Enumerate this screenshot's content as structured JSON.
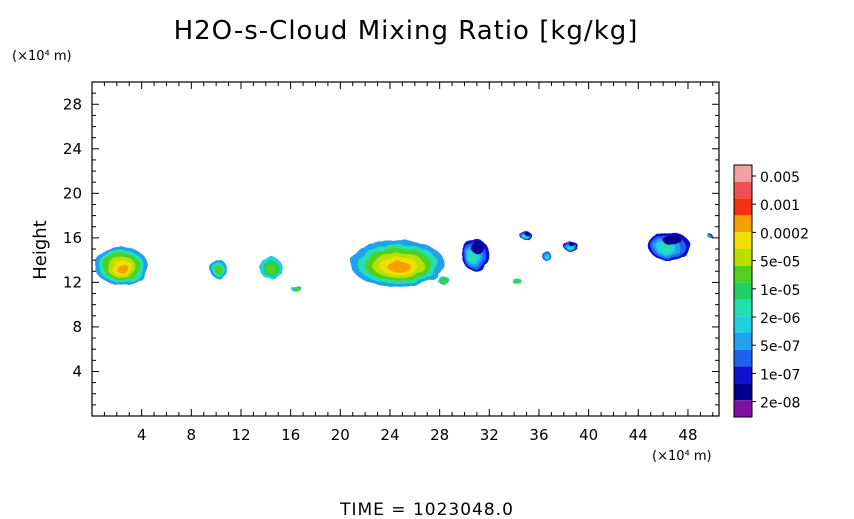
{
  "chart_data": {
    "type": "heatmap",
    "title": "H2O-s-Cloud Mixing Ratio [kg/kg]",
    "ylabel": "Height",
    "x_unit": "(×10⁴ m)",
    "y_unit": "(×10⁴ m)",
    "xlim": [
      0,
      50.5
    ],
    "ylim": [
      0,
      30
    ],
    "x_ticks": [
      4,
      8,
      12,
      16,
      20,
      24,
      28,
      32,
      36,
      40,
      44,
      48
    ],
    "y_ticks": [
      4,
      8,
      12,
      16,
      20,
      24,
      28
    ],
    "legend": {
      "position": "right",
      "labels": [
        "0.005",
        "0.001",
        "0.0002",
        "5e-05",
        "1e-05",
        "2e-06",
        "5e-07",
        "1e-07",
        "2e-08"
      ],
      "colors": [
        "#f2a2a2",
        "#f05050",
        "#f53010",
        "#f5a000",
        "#f0e000",
        "#b8e000",
        "#50d020",
        "#20d060",
        "#20e0b0",
        "#20d0e0",
        "#20a0f0",
        "#2060f0",
        "#1010d0",
        "#000090",
        "#8010a0"
      ]
    },
    "blobs": [
      {
        "x": [
          0.2,
          4.5
        ],
        "y": [
          11.8,
          15.2
        ],
        "level": "0.0002"
      },
      {
        "x": [
          9.5,
          10.9
        ],
        "y": [
          12.4,
          14.0
        ],
        "level": "2e-06"
      },
      {
        "x": [
          13.5,
          15.3
        ],
        "y": [
          12.3,
          14.3
        ],
        "level": "1e-05"
      },
      {
        "x": [
          16.0,
          16.9
        ],
        "y": [
          11.2,
          11.7
        ],
        "level": "1e-05"
      },
      {
        "x": [
          20.8,
          28.4
        ],
        "y": [
          11.6,
          15.8
        ],
        "level": "0.0002"
      },
      {
        "x": [
          27.8,
          28.8
        ],
        "y": [
          11.9,
          12.5
        ],
        "level": "1e-05"
      },
      {
        "x": [
          29.8,
          32.0
        ],
        "y": [
          13.0,
          15.9
        ],
        "level": "2e-08"
      },
      {
        "x": [
          33.8,
          34.6
        ],
        "y": [
          11.9,
          12.4
        ],
        "level": "1e-05"
      },
      {
        "x": [
          34.5,
          35.4
        ],
        "y": [
          15.8,
          16.6
        ],
        "level": "2e-08"
      },
      {
        "x": [
          36.2,
          37.0
        ],
        "y": [
          14.0,
          14.8
        ],
        "level": "5e-07"
      },
      {
        "x": [
          38.0,
          39.2
        ],
        "y": [
          14.8,
          15.6
        ],
        "level": "2e-08"
      },
      {
        "x": [
          44.8,
          48.2
        ],
        "y": [
          14.0,
          16.5
        ],
        "level": "2e-08"
      },
      {
        "x": [
          49.6,
          50.0
        ],
        "y": [
          16.0,
          16.3
        ],
        "level": "2e-08"
      }
    ]
  },
  "footer": {
    "time_label": "TIME = 1023048.0"
  }
}
